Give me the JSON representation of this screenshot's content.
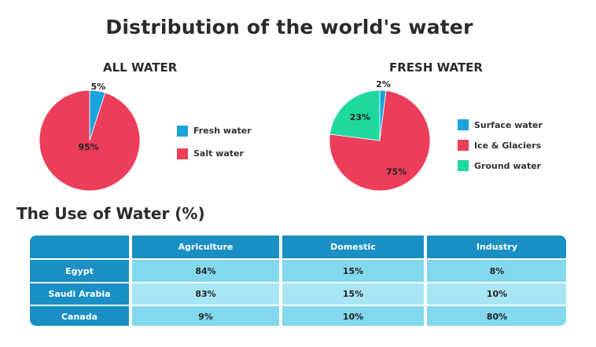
{
  "title": "Distribution of the world's water",
  "chart_data": [
    {
      "type": "pie",
      "title": "ALL WATER",
      "slices": [
        {
          "label": "Fresh water",
          "value": 5,
          "display": "5%",
          "color": "#1aa3dc"
        },
        {
          "label": "Salt water",
          "value": 95,
          "display": "95%",
          "color": "#ec3d5a"
        }
      ]
    },
    {
      "type": "pie",
      "title": "FRESH WATER",
      "slices": [
        {
          "label": "Surface water",
          "value": 2,
          "display": "2%",
          "color": "#1aa3dc"
        },
        {
          "label": "Ice & Glaciers",
          "value": 75,
          "display": "75%",
          "color": "#ec3d5a"
        },
        {
          "label": "Ground water",
          "value": 23,
          "display": "23%",
          "color": "#1fd8a0"
        }
      ]
    },
    {
      "type": "table",
      "title": "The Use of Water (%)",
      "columns": [
        "",
        "Agriculture",
        "Domestic",
        "Industry"
      ],
      "rows": [
        {
          "label": "Egypt",
          "values": [
            "84%",
            "15%",
            "8%"
          ]
        },
        {
          "label": "Saudi Arabia",
          "values": [
            "83%",
            "15%",
            "10%"
          ]
        },
        {
          "label": "Canada",
          "values": [
            "9%",
            "10%",
            "80%"
          ]
        }
      ]
    }
  ]
}
